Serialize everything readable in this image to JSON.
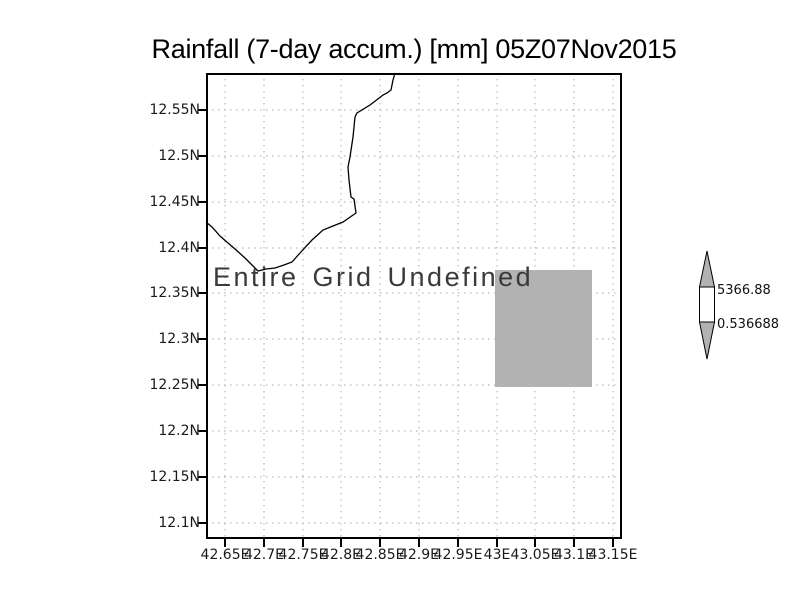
{
  "title": "Rainfall (7-day accum.) [mm] 05Z07Nov2015",
  "map": {
    "undefined_label": "Entire Grid Undefined",
    "lat_ticks": [
      "12.55N",
      "12.5N",
      "12.45N",
      "12.4N",
      "12.35N",
      "12.3N",
      "12.25N",
      "12.2N",
      "12.15N",
      "12.1N"
    ],
    "lon_ticks": [
      "42.65E",
      "42.7E",
      "42.75E",
      "42.8E",
      "42.85E",
      "42.9E",
      "42.95E",
      "43E",
      "43.05E",
      "43.1E",
      "43.15E"
    ]
  },
  "colorbar": {
    "max_label": "5366.88",
    "min_label": "0.536688"
  },
  "colors": {
    "undefined_region_fill": "#b2b2b2",
    "colorbar_arrow_fill": "#b2b2b2",
    "colorbar_bar_fill": "#ffffff",
    "gridline": "#b8b8b8",
    "axis": "#000000",
    "coastline": "#000000"
  },
  "chart_data": {
    "type": "heatmap",
    "title": "Rainfall (7-day accum.) [mm] 05Z07Nov2015",
    "variable": "Rainfall (7-day accum.)",
    "units": "mm",
    "valid_time": "05Z07Nov2015",
    "x_ticks": [
      "42.65E",
      "42.7E",
      "42.75E",
      "42.8E",
      "42.85E",
      "42.9E",
      "42.95E",
      "43E",
      "43.05E",
      "43.1E",
      "43.15E"
    ],
    "y_ticks": [
      "12.1N",
      "12.15N",
      "12.2N",
      "12.25N",
      "12.3N",
      "12.35N",
      "12.4N",
      "12.45N",
      "12.5N",
      "12.55N"
    ],
    "grid": true,
    "gridline_style": "dotted",
    "annotation": "Entire Grid Undefined",
    "values": "no rainfall values plotted; entire grid undefined",
    "masked_region_estimate": {
      "lon_range_e": [
        43.0,
        43.125
      ],
      "lat_range_n": [
        12.25,
        12.375
      ],
      "render": "solid gray rectangle"
    },
    "overlay": "coastline polyline in upper-left quadrant of map",
    "colorbar": {
      "orientation": "vertical",
      "max": 5366.88,
      "min": 0.536688,
      "legend_position": "right of map"
    }
  }
}
